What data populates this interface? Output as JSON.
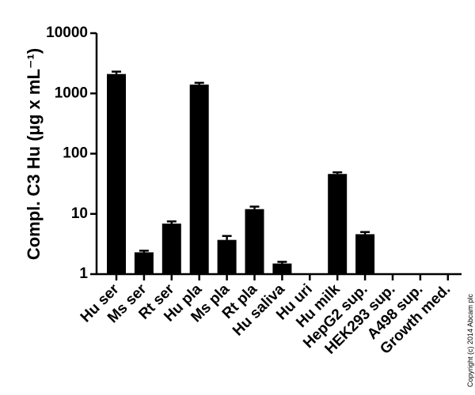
{
  "chart_data": {
    "type": "bar",
    "ylabel": "Compl. C3 Hu (μg x mL⁻¹)",
    "categories": [
      "Hu ser",
      "Ms ser",
      "Rt ser",
      "Hu pla",
      "Ms pla",
      "Rt pla",
      "Hu saliva",
      "Hu uri",
      "Hu milk",
      "HepG2 sup.",
      "HEK293 sup.",
      "A498 sup.",
      "Growth med."
    ],
    "values": [
      2100,
      2.3,
      6.9,
      1400,
      3.7,
      12,
      1.5,
      null,
      46,
      4.6,
      null,
      null,
      null
    ],
    "errors": [
      200,
      0.15,
      0.6,
      100,
      0.6,
      1.2,
      0.1,
      null,
      3,
      0.4,
      null,
      null,
      null
    ],
    "color": "#000000",
    "log_scale": true,
    "ylim": [
      1,
      10000
    ],
    "yticks": [
      1,
      10,
      100,
      1000,
      10000
    ],
    "copyright": "Copyright (c) 2014 Abcam plc"
  }
}
